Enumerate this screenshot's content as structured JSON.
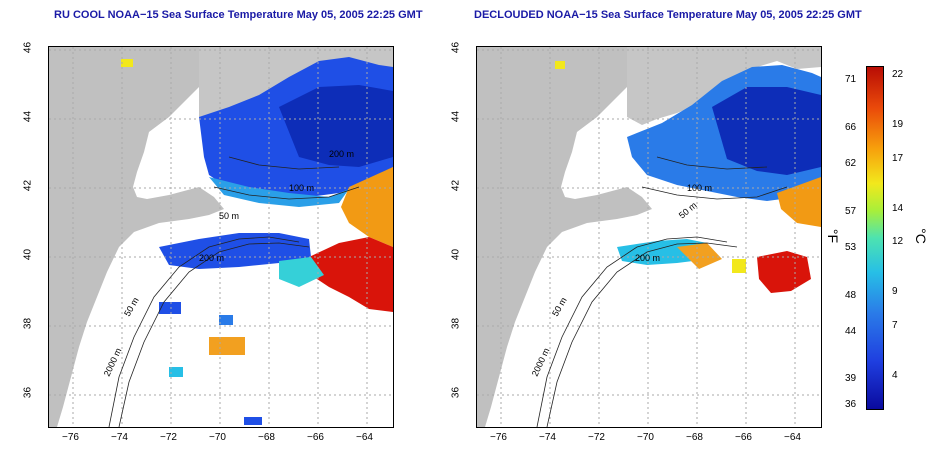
{
  "panels": [
    {
      "id": "left",
      "title": "RU COOL NOAA−15 Sea Surface Temperature May 05, 2005 22:25 GMT"
    },
    {
      "id": "right",
      "title": "DECLOUDED NOAA−15 Sea Surface Temperature May 05, 2005 22:25 GMT"
    }
  ],
  "axes": {
    "lon_ticks": [
      "−76",
      "−74",
      "−72",
      "−70",
      "−68",
      "−66",
      "−64"
    ],
    "lat_ticks": [
      "36",
      "38",
      "40",
      "42",
      "44",
      "46"
    ],
    "lon_range": [
      -77,
      -63
    ],
    "lat_range": [
      35,
      46
    ],
    "grid": "dotted"
  },
  "contour_labels": {
    "left": [
      "50 m",
      "100 m",
      "200 m",
      "200 m",
      "50 m",
      "2000 m"
    ],
    "right": [
      "50 m",
      "100 m",
      "200 m",
      "50 m",
      "2000 m"
    ]
  },
  "colorbar": {
    "fahrenheit_ticks": [
      "71",
      "66",
      "62",
      "57",
      "53",
      "48",
      "44",
      "39",
      "36"
    ],
    "celsius_ticks": [
      "22",
      "19",
      "17",
      "14",
      "12",
      "9",
      "7",
      "4"
    ],
    "unit_f": "°F",
    "unit_c": "°C",
    "colors": [
      "#0a0a9e",
      "#1f3fe0",
      "#2a7be8",
      "#27bfe6",
      "#4de3b0",
      "#a8ef3a",
      "#f2e81c",
      "#f7a10c",
      "#ea4a0a",
      "#b80d05"
    ]
  },
  "colors": {
    "land": "#c0c0c0",
    "title": "#1a1aa6",
    "cold": "#1f3fe0",
    "warm": "#d9140a"
  }
}
